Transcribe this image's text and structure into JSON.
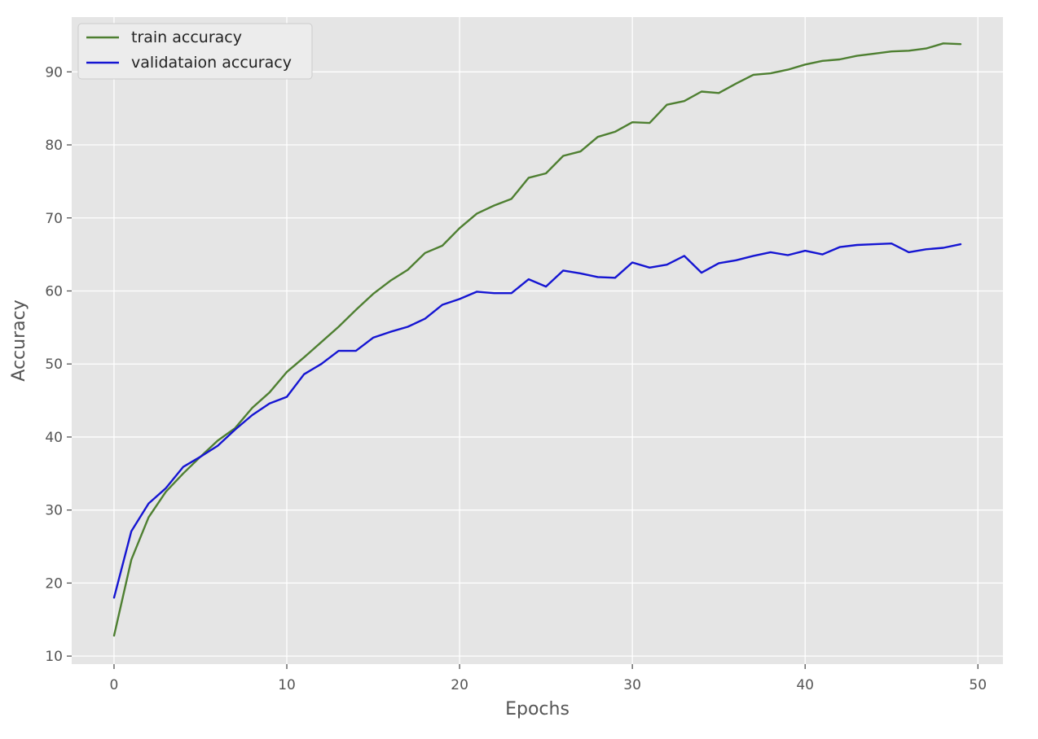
{
  "chart_data": {
    "type": "line",
    "title": "",
    "xlabel": "Epochs",
    "ylabel": "Accuracy",
    "xlim": [
      -2.45,
      51.45
    ],
    "ylim": [
      8.9,
      97.5
    ],
    "xticks": [
      0,
      10,
      20,
      30,
      40,
      50
    ],
    "yticks": [
      10,
      20,
      30,
      40,
      50,
      60,
      70,
      80,
      90
    ],
    "grid": true,
    "legend_position": "top-left",
    "background_color": "#e5e5e5",
    "grid_color": "#ffffff",
    "x": [
      0,
      1,
      2,
      3,
      4,
      5,
      6,
      7,
      8,
      9,
      10,
      11,
      12,
      13,
      14,
      15,
      16,
      17,
      18,
      19,
      20,
      21,
      22,
      23,
      24,
      25,
      26,
      27,
      28,
      29,
      30,
      31,
      32,
      33,
      34,
      35,
      36,
      37,
      38,
      39,
      40,
      41,
      42,
      43,
      44,
      45,
      46,
      47,
      48,
      49
    ],
    "series": [
      {
        "name": "train accuracy",
        "color": "#4e7f31",
        "values": [
          12.8,
          23.2,
          29.0,
          32.5,
          35.0,
          37.3,
          39.5,
          41.2,
          44.0,
          46.1,
          48.9,
          50.9,
          53.0,
          55.1,
          57.4,
          59.6,
          61.4,
          62.9,
          65.2,
          66.2,
          68.6,
          70.6,
          71.7,
          72.6,
          75.5,
          76.1,
          78.5,
          79.1,
          81.1,
          81.8,
          83.1,
          83.0,
          85.5,
          86.0,
          87.3,
          87.1,
          88.4,
          89.6,
          89.8,
          90.3,
          91.0,
          91.5,
          91.7,
          92.2,
          92.5,
          92.8,
          92.9,
          93.2,
          93.9,
          93.8
        ]
      },
      {
        "name": "validataion accuracy",
        "color": "#1515d2",
        "values": [
          18.0,
          27.1,
          30.9,
          33.0,
          35.9,
          37.3,
          38.8,
          41.0,
          43.0,
          44.6,
          45.5,
          48.6,
          50.0,
          51.8,
          51.8,
          53.6,
          54.4,
          55.1,
          56.2,
          58.1,
          58.9,
          59.9,
          59.7,
          59.7,
          61.6,
          60.6,
          62.8,
          62.4,
          61.9,
          61.8,
          63.9,
          63.2,
          63.6,
          64.8,
          62.5,
          63.8,
          64.2,
          64.8,
          65.3,
          64.9,
          65.5,
          65.0,
          66.0,
          66.3,
          66.4,
          66.5,
          65.3,
          65.7,
          65.9,
          66.4
        ]
      }
    ]
  }
}
